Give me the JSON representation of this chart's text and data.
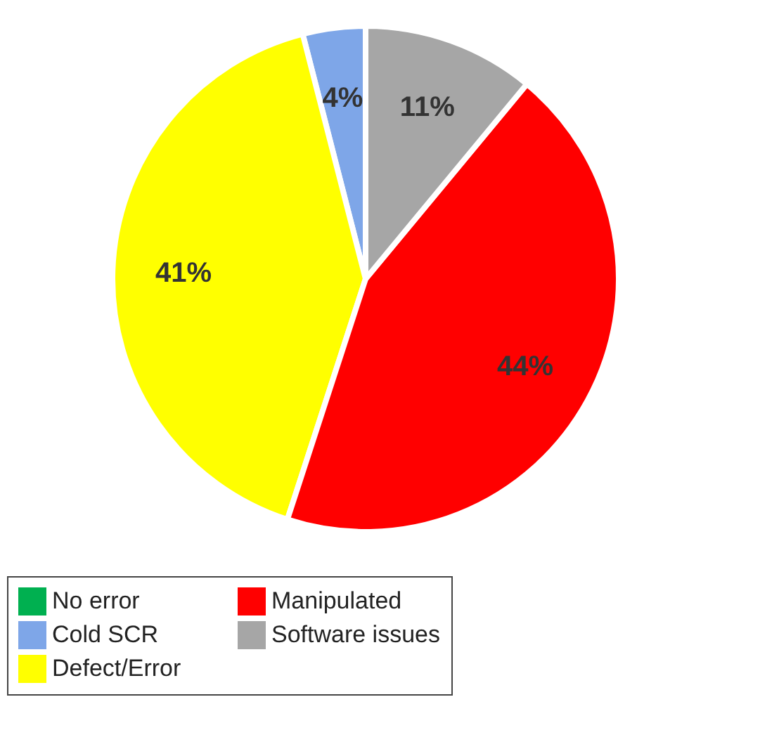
{
  "chart_data": {
    "type": "pie",
    "categories": [
      "No error",
      "Cold SCR",
      "Defect/Error",
      "Manipulated",
      "Software issues"
    ],
    "values": [
      0,
      4,
      41,
      44,
      11
    ],
    "colors": [
      "#00b050",
      "#7ea6e8",
      "#ffff00",
      "#ff0000",
      "#a6a6a6"
    ],
    "value_labels": [
      null,
      "4%",
      "41%",
      "44%",
      "11%"
    ],
    "legend": "bottom"
  }
}
